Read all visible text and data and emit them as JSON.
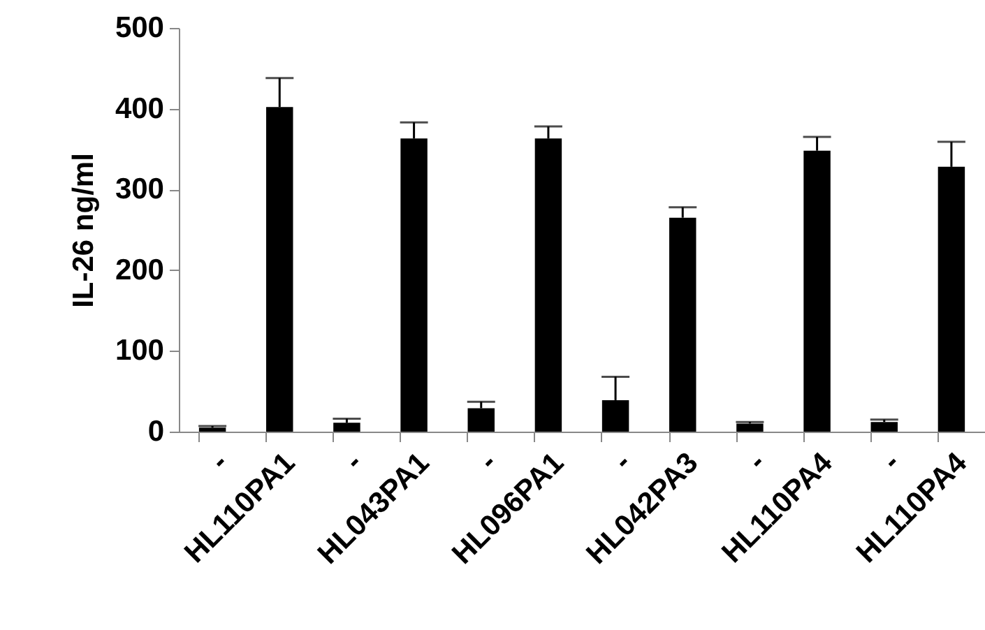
{
  "chart_data": {
    "type": "bar",
    "ylabel": "IL-26 ng/ml",
    "categories": [
      "-",
      "HL110PA1",
      "-",
      "HL043PA1",
      "-",
      "HL096PA1",
      "-",
      "HL042PA3",
      "-",
      "HL110PA4",
      "-",
      "HL110PA4"
    ],
    "values": [
      5,
      402,
      11,
      363,
      29,
      363,
      39,
      265,
      10,
      348,
      12,
      328
    ],
    "errors": [
      [
        5,
        7
      ],
      [
        402,
        438
      ],
      [
        11,
        16
      ],
      [
        363,
        383
      ],
      [
        29,
        37
      ],
      [
        363,
        378
      ],
      [
        39,
        68
      ],
      [
        265,
        278
      ],
      [
        10,
        12
      ],
      [
        348,
        365
      ],
      [
        12,
        15
      ],
      [
        328,
        359
      ]
    ],
    "color": "#000000",
    "ylim": [
      0,
      500
    ],
    "yticks": [
      0,
      100,
      200,
      300,
      400,
      500
    ],
    "grid": false
  }
}
